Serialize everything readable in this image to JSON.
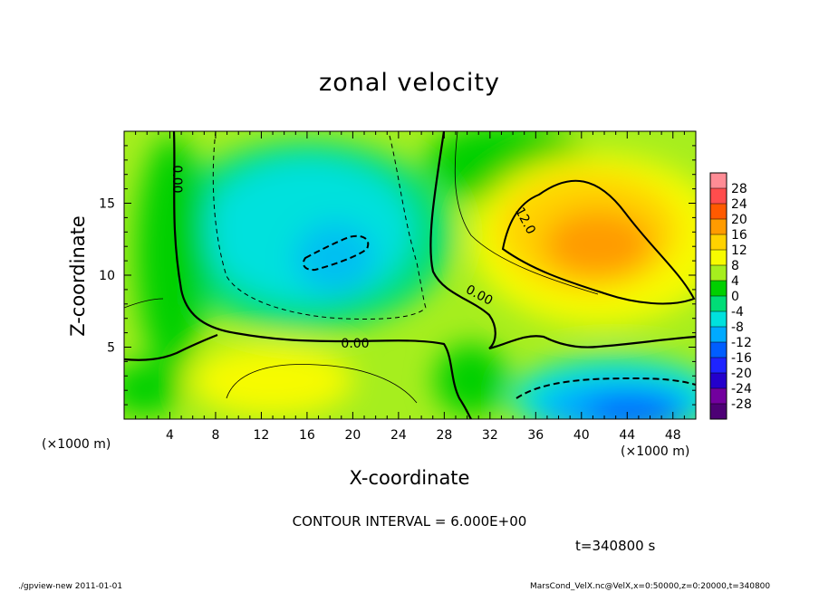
{
  "chart_data": {
    "type": "heatmap",
    "title": "zonal velocity",
    "xlabel": "X-coordinate",
    "ylabel": "Z-coordinate",
    "x_unit_label": "(×1000 m)",
    "xlim": [
      0,
      50
    ],
    "ylim": [
      0,
      20
    ],
    "x_ticks": [
      4,
      8,
      12,
      16,
      20,
      24,
      28,
      32,
      36,
      40,
      44,
      48
    ],
    "y_ticks": [
      5,
      10,
      15
    ],
    "contour_interval_label": "CONTOUR INTERVAL = 6.000E+00",
    "contour_labels": [
      "0.00",
      "0.00",
      "0.00",
      "12.0"
    ],
    "colorbar": {
      "levels": [
        28,
        24,
        20,
        16,
        12,
        8,
        4,
        0,
        -4,
        -8,
        -12,
        -16,
        -20,
        -24,
        -28
      ],
      "colors": [
        "#ff8c95",
        "#ff4d4d",
        "#ff5a00",
        "#ff9b00",
        "#ffd200",
        "#f7fb00",
        "#a6ee1e",
        "#00d000",
        "#00dd77",
        "#00e1dd",
        "#00aaff",
        "#005eff",
        "#1e24ff",
        "#2400cc",
        "#72009e",
        "#4d0075"
      ]
    },
    "time_label": "t=340800 s",
    "features": [
      {
        "name": "positive max",
        "x": 42,
        "z": 11,
        "value": 16
      },
      {
        "name": "negative core aloft",
        "x": 20,
        "z": 11,
        "value": -12
      },
      {
        "name": "negative core near surface",
        "x": 44,
        "z": 1.5,
        "value": -16
      }
    ]
  },
  "footer": {
    "left": "./gpview-new   2011-01-01",
    "right": "MarsCond_VelX.nc@VelX,x=0:50000,z=0:20000,t=340800"
  }
}
